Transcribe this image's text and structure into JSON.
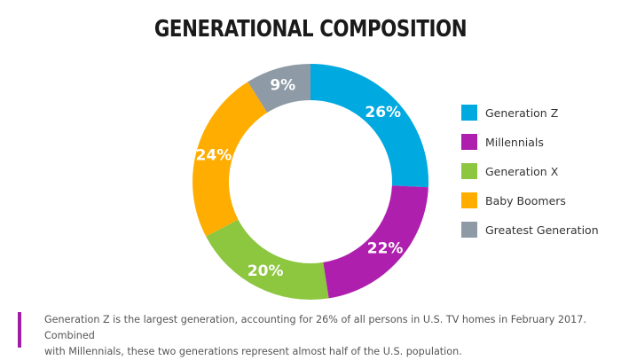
{
  "chart_data": {
    "type": "pie",
    "title": "GENERATIONAL COMPOSITION",
    "donut": true,
    "value_suffix": "%",
    "start": "12 o'clock, clockwise",
    "categories": [
      "Generation Z",
      "Millennials",
      "Generation X",
      "Baby Boomers",
      "Greatest Generation"
    ],
    "values": [
      26,
      22,
      20,
      24,
      9
    ],
    "labels": [
      "26%",
      "22%",
      "20%",
      "24%",
      "9%"
    ],
    "colors": [
      "#00a9e0",
      "#ae1fae",
      "#8dc63f",
      "#ffad00",
      "#8e9aa6"
    ],
    "legend_position": "right"
  },
  "footnote": {
    "line1": "Generation Z is the largest generation, accounting for 26% of all persons in U.S. TV homes in February 2017. Combined",
    "line2": "with Millennials, these two generations represent almost half of the U.S. population.",
    "accent_color": "#a01ea6"
  }
}
